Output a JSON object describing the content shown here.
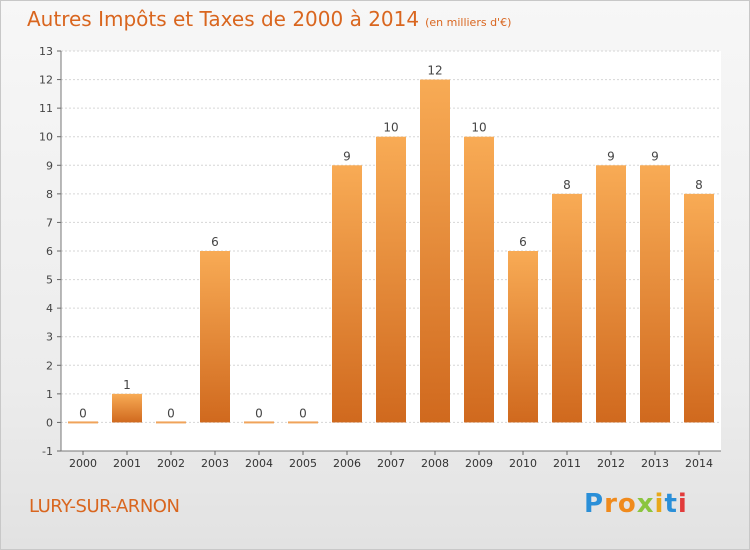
{
  "header": {
    "title": "Autres Impôts et Taxes de 2000 à 2014",
    "subtitle": "(en milliers d'€)"
  },
  "location": "LURY-SUR-ARNON",
  "logo": {
    "text": "Proxiti",
    "letters": [
      "P",
      "r",
      "o",
      "x",
      "i",
      "t",
      "i"
    ]
  },
  "colors": {
    "accent": "#d9661f",
    "bar_top": "#f8ab55",
    "bar_bottom": "#d0691e",
    "grid": "#d6d6d6"
  },
  "chart_data": {
    "type": "bar",
    "categories": [
      "2000",
      "2001",
      "2002",
      "2003",
      "2004",
      "2005",
      "2006",
      "2007",
      "2008",
      "2009",
      "2010",
      "2011",
      "2012",
      "2013",
      "2014"
    ],
    "values": [
      0,
      1,
      0,
      6,
      0,
      0,
      9,
      10,
      12,
      10,
      6,
      8,
      9,
      9,
      8
    ],
    "data_labels": [
      "0",
      "1",
      "0",
      "6",
      "0",
      "0",
      "9",
      "10",
      "12",
      "10",
      "6",
      "8",
      "9",
      "9",
      "8"
    ],
    "title": "Autres Impôts et Taxes de 2000 à 2014",
    "ylim": [
      -1,
      13
    ],
    "yticks": [
      -1,
      0,
      1,
      2,
      3,
      4,
      5,
      6,
      7,
      8,
      9,
      10,
      11,
      12,
      13
    ],
    "grid": true
  }
}
